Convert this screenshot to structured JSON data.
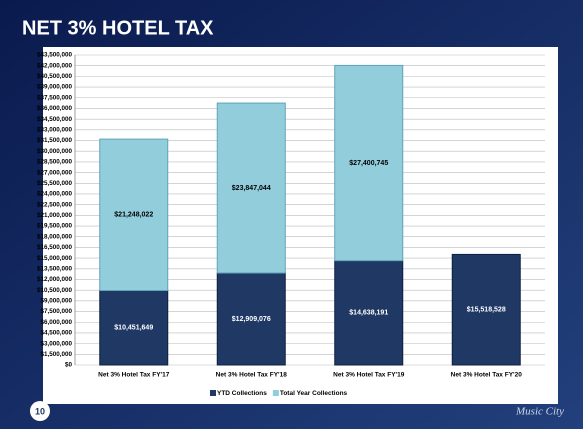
{
  "slide_title": "NET 3% HOTEL TAX",
  "page_number": "10",
  "logo": "Music City",
  "chart_data": {
    "type": "stacked_bar",
    "categories": [
      "Net 3% Hotel Tax FY'17",
      "Net 3% Hotel Tax FY'18",
      "Net 3% Hotel Tax FY'19",
      "Net 3% Hotel Tax FY'20"
    ],
    "series": [
      {
        "name": "YTD Collections",
        "color": "#1f3864",
        "values": [
          10451649,
          12909076,
          14638191,
          15518528
        ],
        "value_labels": [
          "$10,451,649",
          "$12,909,076",
          "$14,638,191",
          "$15,518,528"
        ]
      },
      {
        "name": "Total Year Collections",
        "color": "#92cddc",
        "values": [
          21248022,
          23847044,
          27400745,
          null
        ],
        "value_labels": [
          "$21,248,022",
          "$23,847,044",
          "$27,400,745",
          null
        ]
      }
    ],
    "ylim": [
      0,
      43500000
    ],
    "yticks": [
      {
        "value": 0,
        "label": "$0"
      },
      {
        "value": 1500000,
        "label": "$1,500,000"
      },
      {
        "value": 3000000,
        "label": "$3,000,000"
      },
      {
        "value": 4500000,
        "label": "$4,500,000"
      },
      {
        "value": 6000000,
        "label": "$6,000,000"
      },
      {
        "value": 7500000,
        "label": "$7,500,000"
      },
      {
        "value": 9000000,
        "label": "$9,000,000"
      },
      {
        "value": 10500000,
        "label": "$10,500,000"
      },
      {
        "value": 12000000,
        "label": "$12,000,000"
      },
      {
        "value": 13500000,
        "label": "$13,500,000"
      },
      {
        "value": 15000000,
        "label": "$15,000,000"
      },
      {
        "value": 16500000,
        "label": "$16,500,000"
      },
      {
        "value": 18000000,
        "label": "$18,000,000"
      },
      {
        "value": 19500000,
        "label": "$19,500,000"
      },
      {
        "value": 21000000,
        "label": "$21,000,000"
      },
      {
        "value": 22500000,
        "label": "$22,500,000"
      },
      {
        "value": 24000000,
        "label": "$24,000,000"
      },
      {
        "value": 25500000,
        "label": "$25,500,000"
      },
      {
        "value": 27000000,
        "label": "$27,000,000"
      },
      {
        "value": 28500000,
        "label": "$28,500,000"
      },
      {
        "value": 30000000,
        "label": "$30,000,000"
      },
      {
        "value": 31500000,
        "label": "$31,500,000"
      },
      {
        "value": 33000000,
        "label": "$33,000,000"
      },
      {
        "value": 34500000,
        "label": "$34,500,000"
      },
      {
        "value": 36000000,
        "label": "$36,000,000"
      },
      {
        "value": 37500000,
        "label": "$37,500,000"
      },
      {
        "value": 39000000,
        "label": "$39,000,000"
      },
      {
        "value": 40500000,
        "label": "$40,500,000"
      },
      {
        "value": 42000000,
        "label": "$42,000,000"
      },
      {
        "value": 43500000,
        "label": "$43,500,000"
      }
    ],
    "grid": true,
    "legend": "bottom"
  }
}
